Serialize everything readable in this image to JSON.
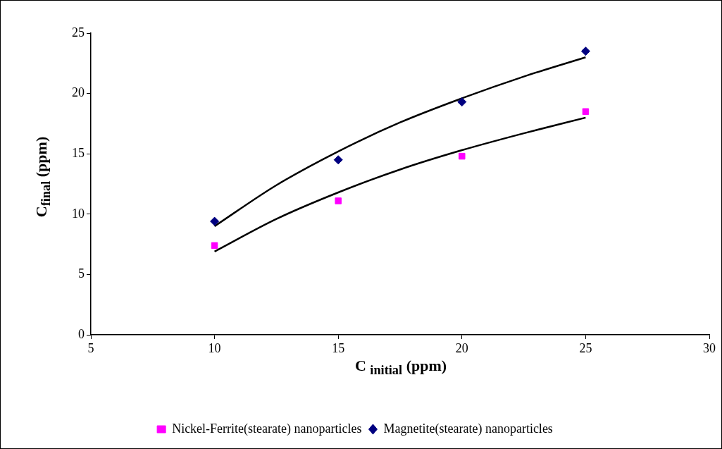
{
  "chart_data": {
    "type": "scatter",
    "xlabel": "C $_{initial}$ (ppm)",
    "ylabel": "C$_{final}$ (ppm)",
    "xlim": [
      5,
      30
    ],
    "xticks": [
      5,
      10,
      15,
      20,
      25,
      30
    ],
    "ylim": [
      0,
      25
    ],
    "yticks": [
      0,
      5,
      10,
      15,
      20,
      25
    ],
    "grid": false,
    "legend": "bottom",
    "series": [
      {
        "name": "Nickel-Ferrite(stearate) nanoparticles",
        "type": "scatter",
        "marker": "square",
        "color": "#ff00ff",
        "x": [
          10,
          15,
          20,
          25
        ],
        "values": [
          7.4,
          11.1,
          14.8,
          18.5
        ]
      },
      {
        "name": "Magnetite(stearate) nanoparticles",
        "type": "scatter",
        "marker": "diamond",
        "color": "#000080",
        "x": [
          10,
          15,
          20,
          25
        ],
        "values": [
          9.4,
          14.5,
          19.3,
          23.5
        ]
      },
      {
        "type": "line",
        "marker": "none",
        "color": "#000000",
        "x": [
          10,
          12.5,
          15,
          17.5,
          20,
          22.5,
          25
        ],
        "values": [
          6.9,
          9.6,
          11.8,
          13.7,
          15.3,
          16.7,
          18.0
        ]
      },
      {
        "type": "line",
        "marker": "none",
        "color": "#000000",
        "x": [
          10,
          12.5,
          15,
          17.5,
          20,
          22.5,
          25
        ],
        "values": [
          9.0,
          12.4,
          15.2,
          17.6,
          19.6,
          21.4,
          23.0
        ]
      }
    ]
  }
}
